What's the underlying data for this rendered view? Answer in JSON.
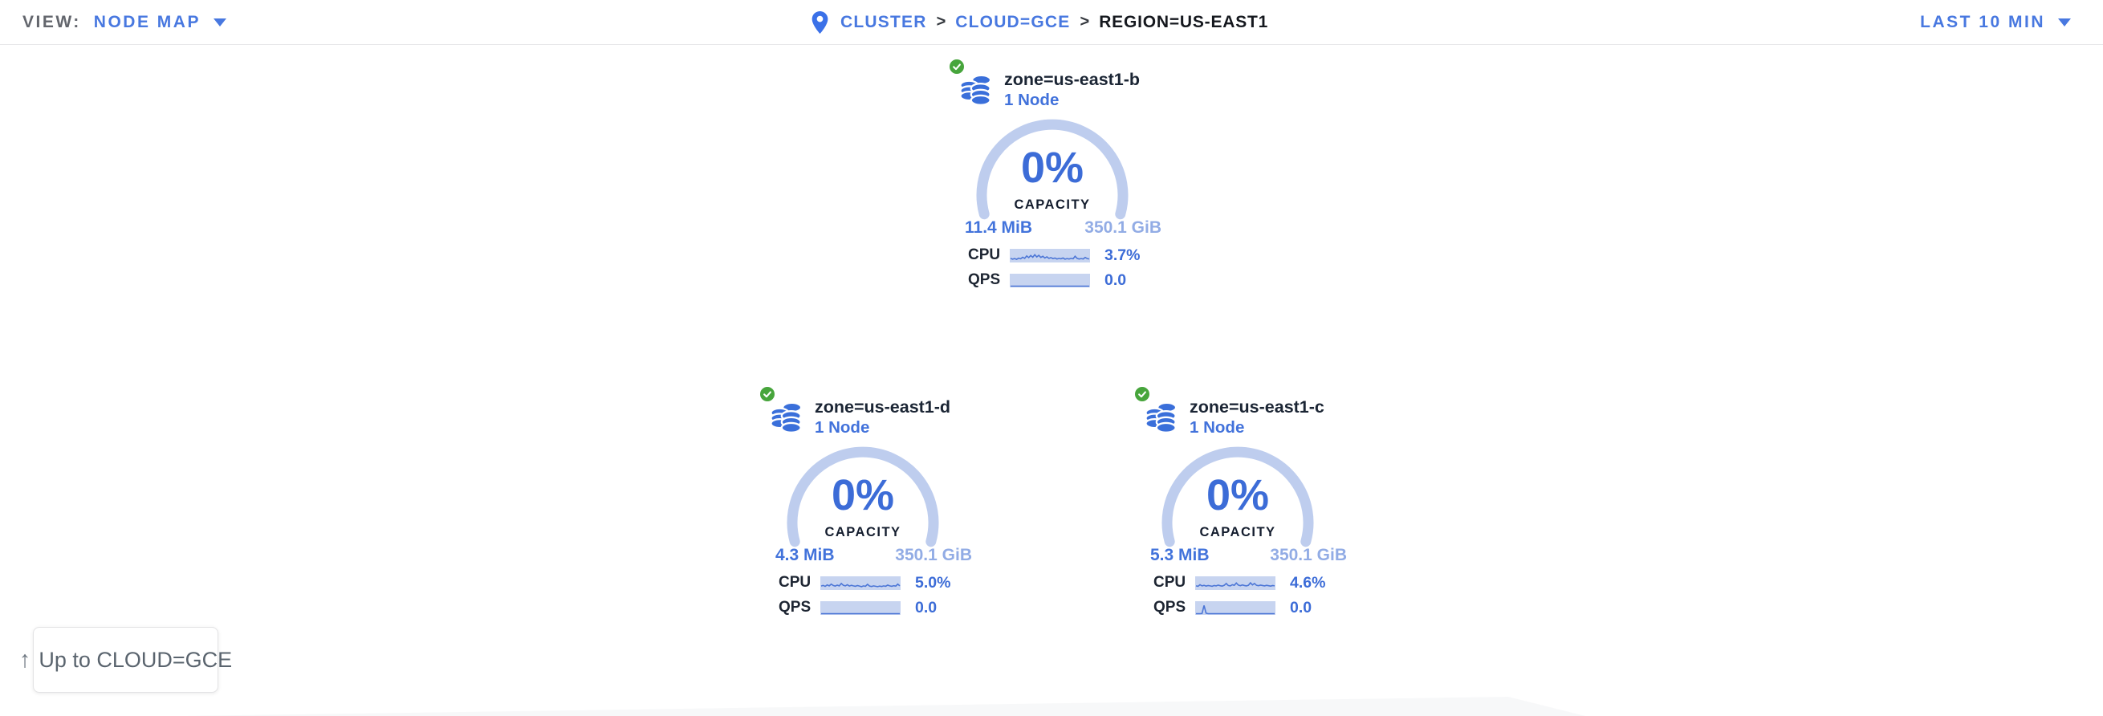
{
  "topbar": {
    "view_label": "VIEW:",
    "view_value": "NODE MAP",
    "breadcrumb": {
      "separator": ">",
      "items": [
        {
          "label": "CLUSTER"
        },
        {
          "label": "CLOUD=GCE"
        },
        {
          "label": "REGION=US-EAST1"
        }
      ]
    },
    "time_range": "LAST 10 MIN"
  },
  "map": {
    "up_button": {
      "arrow": "↑",
      "label": "Up to CLOUD=GCE"
    },
    "zones": [
      {
        "title": "zone=us-east1-b",
        "node_count": "1 Node",
        "status": "healthy",
        "capacity_pct": "0%",
        "capacity_label": "CAPACITY",
        "used": "11.4 MiB",
        "total": "350.1 GiB",
        "cpu_label": "CPU",
        "cpu_value": "3.7%",
        "qps_label": "QPS",
        "qps_value": "0.0",
        "cpu_spark": [
          0.3,
          0.22,
          0.28,
          0.2,
          0.32,
          0.26,
          0.42,
          0.3,
          0.55,
          0.38,
          0.6,
          0.42,
          0.68,
          0.45,
          0.62,
          0.4,
          0.52,
          0.34,
          0.46,
          0.3,
          0.38,
          0.28,
          0.34,
          0.24,
          0.3,
          0.26,
          0.34,
          0.22,
          0.28,
          0.24,
          0.3,
          0.26,
          0.52,
          0.3,
          0.24,
          0.28,
          0.24,
          0.4,
          0.28,
          0.24
        ],
        "qps_spark": [
          0,
          0,
          0,
          0,
          0,
          0,
          0,
          0,
          0,
          0,
          0,
          0,
          0,
          0,
          0,
          0,
          0,
          0,
          0,
          0,
          0,
          0,
          0,
          0,
          0,
          0,
          0,
          0,
          0,
          0,
          0,
          0,
          0,
          0,
          0,
          0,
          0,
          0,
          0,
          0
        ]
      },
      {
        "title": "zone=us-east1-d",
        "node_count": "1 Node",
        "status": "healthy",
        "capacity_pct": "0%",
        "capacity_label": "CAPACITY",
        "used": "4.3 MiB",
        "total": "350.1 GiB",
        "cpu_label": "CPU",
        "cpu_value": "5.0%",
        "qps_label": "QPS",
        "qps_value": "0.0",
        "cpu_spark": [
          0.28,
          0.35,
          0.25,
          0.4,
          0.3,
          0.48,
          0.34,
          0.28,
          0.38,
          0.3,
          0.55,
          0.36,
          0.3,
          0.42,
          0.28,
          0.36,
          0.3,
          0.26,
          0.34,
          0.28,
          0.22,
          0.3,
          0.26,
          0.46,
          0.28,
          0.24,
          0.3,
          0.26,
          0.22,
          0.28,
          0.24,
          0.3,
          0.26,
          0.38,
          0.3,
          0.26,
          0.32,
          0.28,
          0.48,
          0.3
        ],
        "qps_spark": [
          0,
          0,
          0,
          0,
          0,
          0,
          0,
          0,
          0,
          0,
          0,
          0,
          0,
          0,
          0,
          0,
          0,
          0,
          0,
          0,
          0,
          0,
          0,
          0,
          0,
          0,
          0,
          0,
          0,
          0,
          0,
          0,
          0,
          0,
          0,
          0,
          0,
          0,
          0,
          0
        ]
      },
      {
        "title": "zone=us-east1-c",
        "node_count": "1 Node",
        "status": "healthy",
        "capacity_pct": "0%",
        "capacity_label": "CAPACITY",
        "used": "5.3 MiB",
        "total": "350.1 GiB",
        "cpu_label": "CPU",
        "cpu_value": "4.6%",
        "qps_label": "QPS",
        "qps_value": "0.0",
        "cpu_spark": [
          0.3,
          0.26,
          0.42,
          0.3,
          0.36,
          0.28,
          0.34,
          0.3,
          0.26,
          0.34,
          0.3,
          0.38,
          0.32,
          0.28,
          0.36,
          0.55,
          0.34,
          0.3,
          0.42,
          0.36,
          0.6,
          0.38,
          0.32,
          0.4,
          0.34,
          0.3,
          0.36,
          0.62,
          0.4,
          0.55,
          0.36,
          0.32,
          0.38,
          0.34,
          0.3,
          0.36,
          0.32,
          0.28,
          0.34,
          0.3
        ],
        "qps_spark": [
          0,
          0,
          0,
          0.02,
          0.85,
          0.05,
          0,
          0,
          0,
          0,
          0,
          0,
          0,
          0,
          0,
          0,
          0,
          0,
          0,
          0,
          0,
          0,
          0,
          0,
          0,
          0,
          0,
          0,
          0,
          0,
          0,
          0,
          0,
          0,
          0,
          0,
          0,
          0,
          0,
          0
        ]
      }
    ]
  },
  "colors": {
    "accent_blue": "#4878e0",
    "data_blue": "#3c6cd7",
    "light_blue": "#92ace5",
    "arc_blue": "#becdee",
    "spark_bg": "#c7d4f0",
    "spark_line": "#4c76d6",
    "node_icon_blue": "#3a6fda",
    "healthy_green": "#47a53c",
    "dark_text": "#1b2534"
  }
}
